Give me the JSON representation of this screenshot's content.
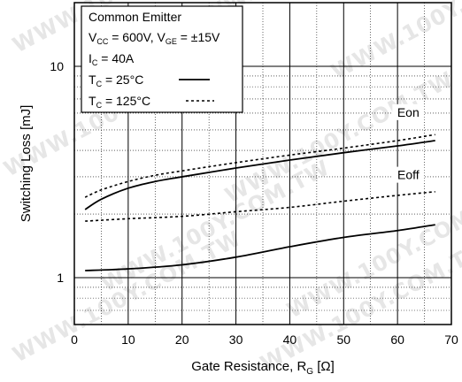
{
  "chart_data": {
    "type": "line",
    "xlabel": "Gate Resistance, R",
    "xlabel_sub": "G",
    "xlabel_unit": "[Ω]",
    "ylabel": "Switching Loss [mJ]",
    "xlim": [
      0,
      70
    ],
    "ylim": [
      0.6,
      20
    ],
    "y_scale": "log",
    "xticks": [
      0,
      10,
      20,
      30,
      40,
      50,
      60,
      70
    ],
    "yticks": [
      1,
      10
    ],
    "grid": true,
    "legend_position": "top-left",
    "legend_lines": [
      {
        "text": "Common Emitter"
      },
      {
        "main": "V",
        "sub": "CC",
        "rest1": " = 600V, V",
        "sub2": "GE",
        "rest2": " = ±15V"
      },
      {
        "main": "I",
        "sub": "C",
        "rest1": " = 40A"
      },
      {
        "main": "T",
        "sub": "C",
        "rest1": " = 25°C"
      },
      {
        "main": "T",
        "sub": "C",
        "rest1": " = 125°C"
      }
    ],
    "series": [
      {
        "name": "Eon",
        "label": "Eon",
        "condition": "25°C",
        "style": "solid",
        "x": [
          2,
          5,
          10,
          15,
          20,
          30,
          40,
          50,
          60,
          67
        ],
        "y": [
          2.1,
          2.35,
          2.65,
          2.85,
          3.0,
          3.3,
          3.6,
          3.9,
          4.2,
          4.45
        ]
      },
      {
        "name": "Eon",
        "condition": "125°C",
        "style": "dotted",
        "x": [
          2,
          5,
          10,
          15,
          20,
          30,
          40,
          50,
          60,
          67
        ],
        "y": [
          2.4,
          2.6,
          2.85,
          3.05,
          3.2,
          3.5,
          3.8,
          4.1,
          4.45,
          4.75
        ]
      },
      {
        "name": "Eoff",
        "label": "Eoff",
        "condition": "25°C",
        "style": "solid",
        "x": [
          2,
          10,
          20,
          30,
          40,
          50,
          60,
          67
        ],
        "y": [
          1.08,
          1.1,
          1.15,
          1.25,
          1.4,
          1.55,
          1.67,
          1.78
        ]
      },
      {
        "name": "Eoff",
        "condition": "125°C",
        "style": "dotted",
        "x": [
          2,
          10,
          20,
          30,
          40,
          50,
          60,
          67
        ],
        "y": [
          1.85,
          1.9,
          1.95,
          2.05,
          2.15,
          2.3,
          2.45,
          2.55
        ]
      }
    ]
  },
  "watermark_text": "WWW.100Y.COM.TW"
}
